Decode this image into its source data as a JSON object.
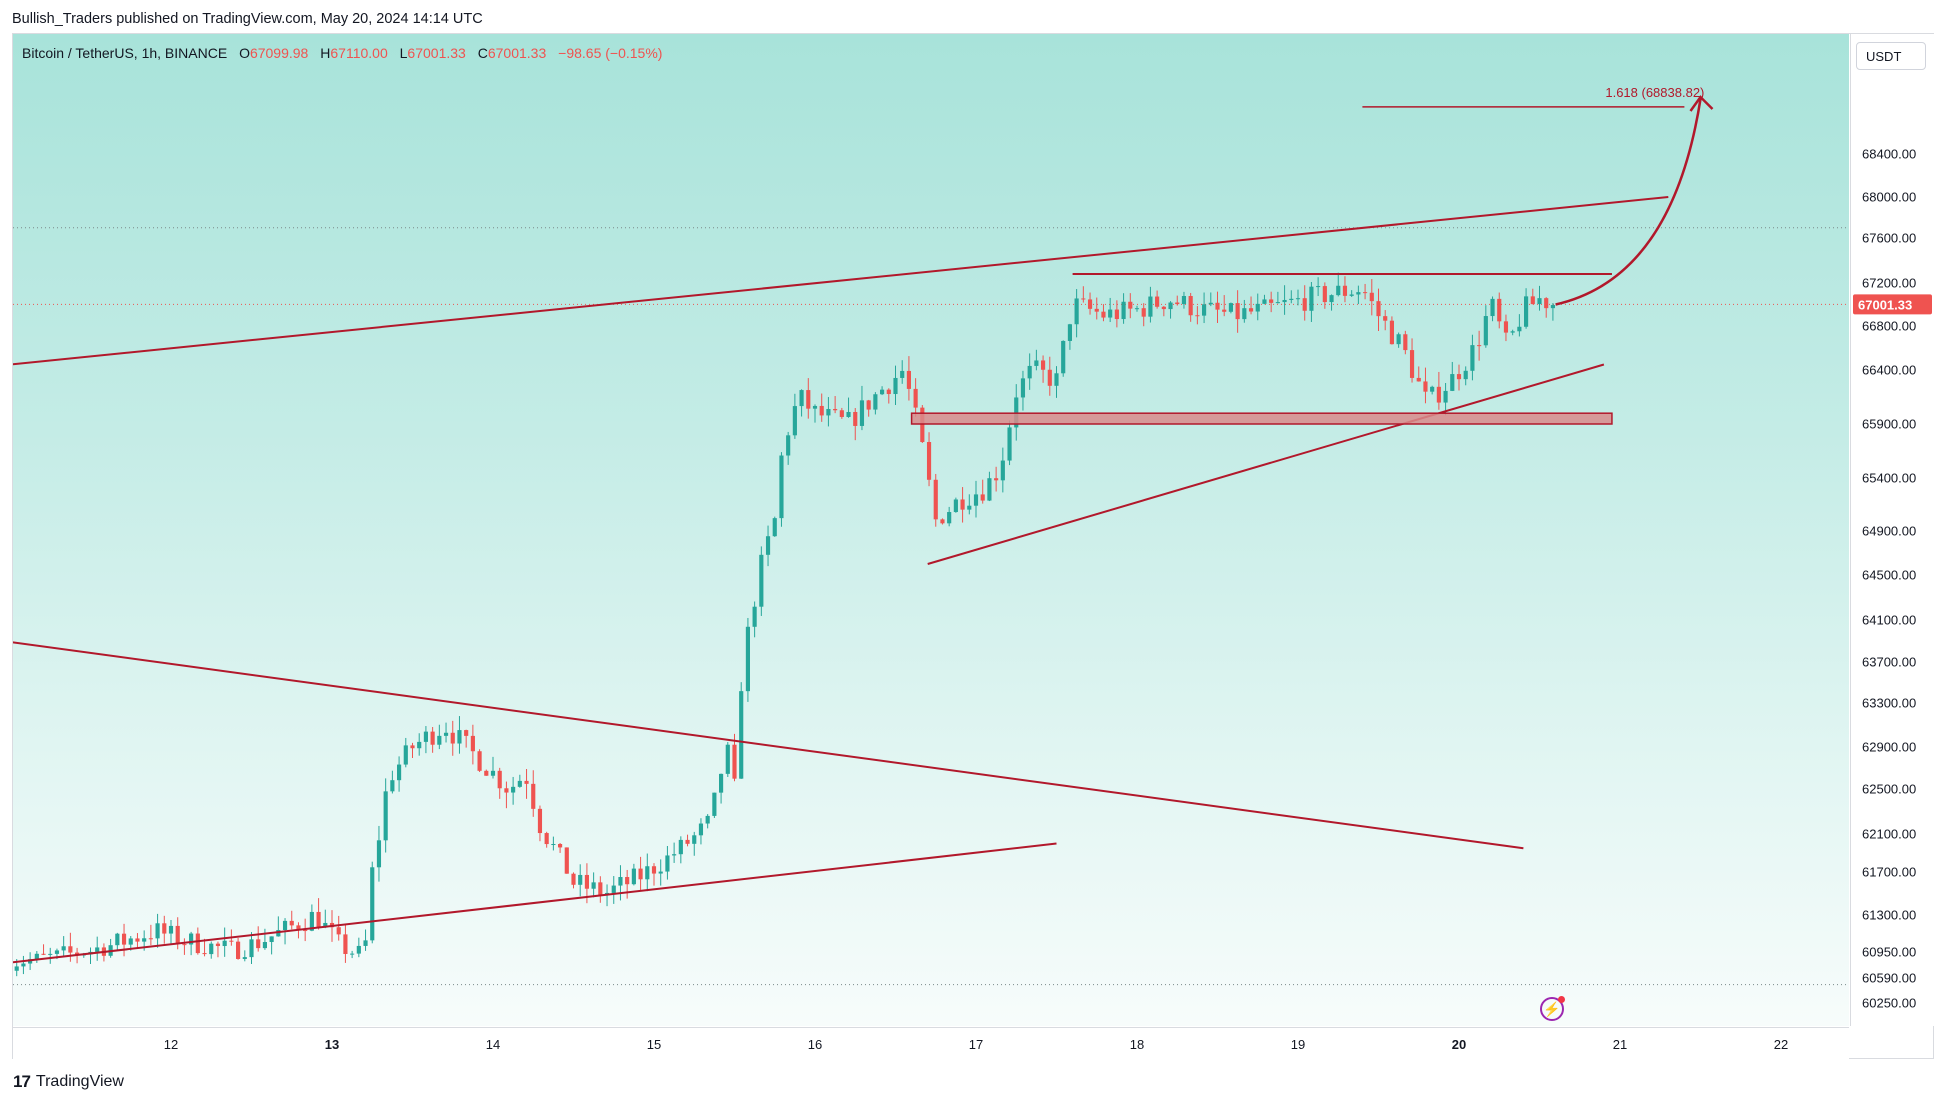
{
  "publisher": "Bullish_Traders published on TradingView.com, May 20, 2024 14:14 UTC",
  "legend": {
    "symbol": "Bitcoin / TetherUS, 1h, BINANCE",
    "o_label": "O",
    "o": "67099.98",
    "h_label": "H",
    "h": "67110.00",
    "l_label": "L",
    "l": "67001.33",
    "c_label": "C",
    "c": "67001.33",
    "change": "−98.65 (−0.15%)"
  },
  "currency_button": "USDT",
  "footer_brand": "TradingView",
  "colors": {
    "up": "#26a69a",
    "down": "#ef5350",
    "drawing": "#b2182b",
    "current_price": "#ef5350"
  },
  "icons": {
    "logo": "tradingview-logo-icon",
    "flash": "lightning-icon"
  },
  "chart_data": {
    "type": "candlestick",
    "title": "Bitcoin / TetherUS, 1h, BINANCE",
    "xlabel": "",
    "ylabel": "",
    "ylim": [
      60000,
      69300
    ],
    "x_ticks": [
      "12",
      "13",
      "14",
      "15",
      "16",
      "17",
      "18",
      "19",
      "20",
      "21",
      "22"
    ],
    "x_ticks_bold": [
      "13",
      "20"
    ],
    "y_ticks": [
      60250,
      60590,
      60950,
      61300,
      61700,
      62100,
      62500,
      62900,
      63300,
      63700,
      64100,
      64500,
      64900,
      65400,
      65900,
      66400,
      66800,
      67200,
      67600,
      68000,
      68400
    ],
    "y_tick_labels": [
      "60250.00",
      "60590.00",
      "60950.00",
      "61300.00",
      "61700.00",
      "62100.00",
      "62500.00",
      "62900.00",
      "63300.00",
      "63700.00",
      "64100.00",
      "64500.00",
      "64900.00",
      "65400.00",
      "65900.00",
      "66400.00",
      "66800.00",
      "67200.00",
      "67600.00",
      "68000.00",
      "68400.00"
    ],
    "current_price": 67001.33,
    "current_price_label": "67001.33",
    "fib_label": "1.618 (68838.82)",
    "fib_price": 68838.82,
    "close_path": [
      [
        11.0,
        60800
      ],
      [
        11.3,
        60900
      ],
      [
        11.6,
        61000
      ],
      [
        11.9,
        61150
      ],
      [
        12.1,
        61050
      ],
      [
        12.4,
        60950
      ],
      [
        12.7,
        61150
      ],
      [
        12.9,
        61300
      ],
      [
        13.05,
        61000
      ],
      [
        13.2,
        60900
      ],
      [
        13.25,
        61700
      ],
      [
        13.35,
        62600
      ],
      [
        13.5,
        62900
      ],
      [
        13.7,
        63100
      ],
      [
        13.9,
        62800
      ],
      [
        14.1,
        62500
      ],
      [
        14.2,
        62650
      ],
      [
        14.3,
        62150
      ],
      [
        14.4,
        61900
      ],
      [
        14.5,
        61600
      ],
      [
        14.7,
        61500
      ],
      [
        14.9,
        61650
      ],
      [
        15.05,
        61800
      ],
      [
        15.2,
        62000
      ],
      [
        15.35,
        62200
      ],
      [
        15.45,
        62900
      ],
      [
        15.5,
        62500
      ],
      [
        15.55,
        63700
      ],
      [
        15.65,
        64500
      ],
      [
        15.75,
        65000
      ],
      [
        15.8,
        65700
      ],
      [
        15.9,
        66150
      ],
      [
        16.0,
        66000
      ],
      [
        16.2,
        65900
      ],
      [
        16.4,
        66200
      ],
      [
        16.55,
        66400
      ],
      [
        16.65,
        65800
      ],
      [
        16.75,
        65000
      ],
      [
        16.9,
        65200
      ],
      [
        17.05,
        65300
      ],
      [
        17.15,
        65500
      ],
      [
        17.25,
        66200
      ],
      [
        17.35,
        66400
      ],
      [
        17.5,
        66300
      ],
      [
        17.6,
        67000
      ],
      [
        17.8,
        66900
      ],
      [
        18.0,
        66950
      ],
      [
        18.2,
        67050
      ],
      [
        18.4,
        66950
      ],
      [
        18.6,
        66900
      ],
      [
        18.8,
        66950
      ],
      [
        19.05,
        67050
      ],
      [
        19.2,
        67100
      ],
      [
        19.4,
        67150
      ],
      [
        19.5,
        66900
      ],
      [
        19.65,
        66600
      ],
      [
        19.8,
        66100
      ],
      [
        19.95,
        66300
      ],
      [
        20.1,
        66600
      ],
      [
        20.2,
        67000
      ],
      [
        20.3,
        66600
      ],
      [
        20.4,
        66950
      ],
      [
        20.5,
        67050
      ],
      [
        20.6,
        67001
      ]
    ],
    "annotations": {
      "upper_channel": [
        [
          10.0,
          66300
        ],
        [
          21.3,
          68000
        ]
      ],
      "rising_support": [
        [
          16.7,
          64600
        ],
        [
          20.9,
          66450
        ]
      ],
      "resistance": [
        [
          17.6,
          67280
        ],
        [
          20.95,
          67280
        ]
      ],
      "demand_zone": [
        [
          16.6,
          65900
        ],
        [
          20.95,
          66000
        ]
      ],
      "falling_line": [
        [
          10.0,
          64100
        ],
        [
          20.4,
          61950
        ]
      ],
      "lower_support": [
        [
          10.0,
          60550
        ],
        [
          17.5,
          62000
        ]
      ],
      "projection_curve": [
        [
          20.6,
          67000
        ],
        [
          21.2,
          67600
        ],
        [
          21.5,
          68800
        ]
      ],
      "fib_level": [
        [
          19.4,
          68838.82
        ],
        [
          21.4,
          68838.82
        ]
      ]
    }
  }
}
